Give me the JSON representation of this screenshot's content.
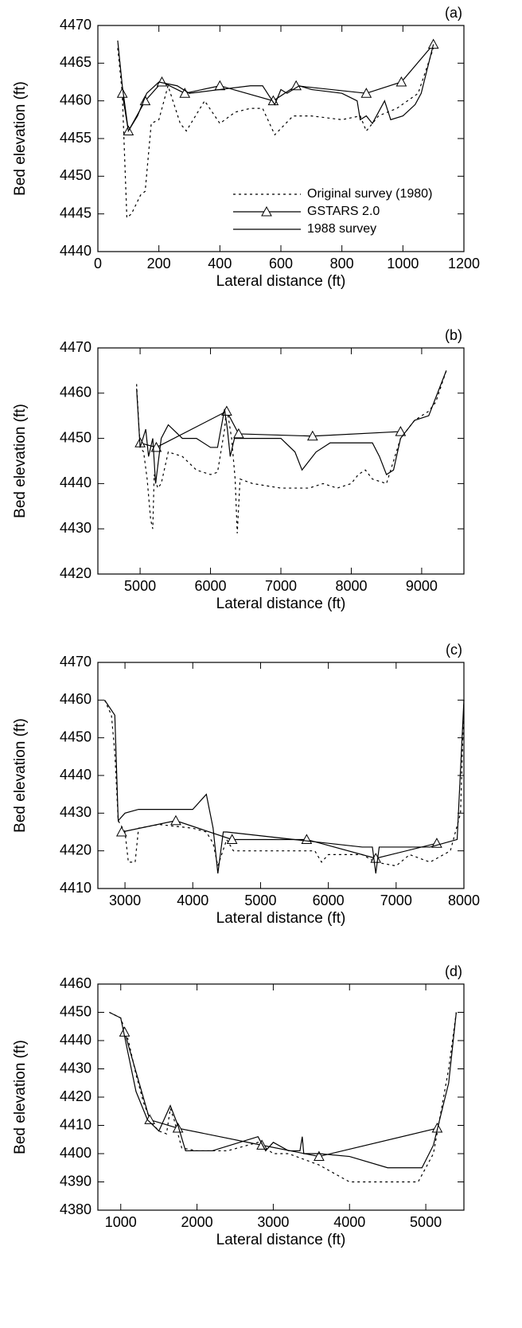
{
  "chart_data": [
    {
      "type": "line",
      "title": "(a)",
      "xlabel": "Lateral distance (ft)",
      "ylabel": "Bed elevation (ft)",
      "xlim": [
        0,
        1200
      ],
      "ylim": [
        4440,
        4470
      ],
      "xticks": [
        0,
        200,
        400,
        600,
        800,
        1000,
        1200
      ],
      "yticks": [
        4440,
        4445,
        4450,
        4455,
        4460,
        4465,
        4470
      ],
      "legend": "lower right",
      "series": [
        {
          "name": "Original survey (1980)",
          "color": "#000000",
          "style": "dotted",
          "x": [
            65,
            80,
            95,
            110,
            140,
            155,
            175,
            200,
            230,
            270,
            290,
            350,
            400,
            450,
            500,
            540,
            580,
            640,
            700,
            800,
            860,
            880,
            920,
            980,
            1050,
            1100
          ],
          "values": [
            4467,
            4461,
            4444.5,
            4445,
            4447.5,
            4448,
            4457,
            4457.5,
            4462,
            4457,
            4456,
            4460,
            4457,
            4458.5,
            4459,
            4459,
            4455.5,
            4458,
            4458,
            4457.5,
            4458,
            4456,
            4458,
            4459,
            4461,
            4467
          ]
        },
        {
          "name": "GSTARS 2.0",
          "color": "#000000",
          "style": "solid",
          "marker": "triangle",
          "x": [
            80,
            100,
            155,
            210,
            285,
            400,
            575,
            650,
            880,
            995,
            1100
          ],
          "values": [
            4461,
            4456,
            4460,
            4462.5,
            4461,
            4462,
            4460,
            4462,
            4461,
            4462.5,
            4467.5
          ]
        },
        {
          "name": "1988 survey",
          "color": "#000000",
          "style": "solid",
          "x": [
            65,
            80,
            100,
            130,
            160,
            200,
            260,
            300,
            400,
            500,
            540,
            580,
            600,
            620,
            660,
            700,
            800,
            850,
            860,
            880,
            900,
            940,
            960,
            1000,
            1040,
            1060,
            1100
          ],
          "values": [
            4468,
            4462,
            4456,
            4458,
            4461,
            4462.5,
            4462,
            4461,
            4461.5,
            4462,
            4462,
            4459.5,
            4461.5,
            4461,
            4462,
            4461.5,
            4461,
            4460,
            4457.5,
            4458,
            4457,
            4460,
            4457.5,
            4458,
            4459.5,
            4461,
            4467.5
          ]
        }
      ]
    },
    {
      "type": "line",
      "title": "(b)",
      "xlabel": "Lateral distance (ft)",
      "ylabel": "Bed elevation (ft)",
      "xlim": [
        4400,
        9600
      ],
      "ylim": [
        4420,
        4470
      ],
      "xticks": [
        5000,
        6000,
        7000,
        8000,
        9000
      ],
      "yticks": [
        4420,
        4430,
        4440,
        4450,
        4460,
        4470
      ],
      "series": [
        {
          "color": "#000000",
          "style": "dotted",
          "x": [
            4950,
            5000,
            5050,
            5100,
            5150,
            5180,
            5200,
            5250,
            5300,
            5400,
            5600,
            5800,
            6000,
            6100,
            6200,
            6230,
            6270,
            6300,
            6350,
            6380,
            6420,
            6600,
            7000,
            7400,
            7600,
            7800,
            8000,
            8100,
            8200,
            8300,
            8500,
            8700,
            8900,
            9100,
            9200,
            9350
          ],
          "values": [
            4462,
            4448,
            4447,
            4441,
            4432,
            4430,
            4442,
            4439,
            4440,
            4447,
            4446,
            4443,
            4442,
            4442.5,
            4452,
            4457,
            4453,
            4450,
            4441,
            4429,
            4441,
            4440,
            4439,
            4439,
            4440,
            4439,
            4440,
            4442,
            4443,
            4441,
            4440,
            4450,
            4454,
            4456,
            4458,
            4465
          ]
        },
        {
          "color": "#000000",
          "style": "solid",
          "marker": "triangle",
          "x": [
            5000,
            5230,
            6230,
            6400,
            7450,
            8700
          ],
          "values": [
            4449,
            4448,
            4456,
            4451,
            4450.5,
            4451.5
          ]
        },
        {
          "color": "#000000",
          "style": "solid",
          "x": [
            4950,
            5000,
            5080,
            5120,
            5180,
            5220,
            5300,
            5400,
            5600,
            5800,
            6000,
            6100,
            6200,
            6240,
            6280,
            6340,
            6400,
            6800,
            7000,
            7200,
            7300,
            7400,
            7500,
            7700,
            8000,
            8300,
            8400,
            8500,
            8600,
            8700,
            8900,
            9100,
            9200,
            9350
          ],
          "values": [
            4461,
            4448,
            4452,
            4446,
            4450,
            4440,
            4450,
            4453,
            4450,
            4450,
            4448,
            4448,
            4456.5,
            4452,
            4446,
            4450,
            4450,
            4450,
            4450,
            4447,
            4443,
            4445,
            4447,
            4449,
            4449,
            4449,
            4446,
            4442,
            4443,
            4450,
            4454,
            4455,
            4459,
            4465
          ]
        }
      ]
    },
    {
      "type": "line",
      "title": "(c)",
      "xlabel": "Lateral distance (ft)",
      "ylabel": "Bed elevation (ft)",
      "xlim": [
        2600,
        8000
      ],
      "ylim": [
        4410,
        4470
      ],
      "xticks": [
        3000,
        4000,
        5000,
        6000,
        7000,
        8000
      ],
      "yticks": [
        4410,
        4420,
        4430,
        4440,
        4450,
        4460,
        4470
      ],
      "series": [
        {
          "color": "#000000",
          "style": "dotted",
          "x": [
            2700,
            2800,
            2850,
            2900,
            3000,
            3050,
            3150,
            3200,
            3500,
            4000,
            4200,
            4300,
            4370,
            4500,
            4600,
            5000,
            5500,
            5800,
            5900,
            6000,
            6500,
            6700,
            7000,
            7200,
            7500,
            7800,
            7950,
            8000
          ],
          "values": [
            4460,
            4456,
            4446,
            4428,
            4425,
            4417,
            4417,
            4426,
            4427,
            4426,
            4425,
            4422,
            4416,
            4423,
            4420,
            4420,
            4420,
            4420,
            4417,
            4419,
            4419,
            4417,
            4416,
            4419,
            4417,
            4420,
            4430,
            4460
          ]
        },
        {
          "color": "#000000",
          "style": "solid",
          "marker": "triangle",
          "x": [
            2950,
            3750,
            4580,
            5680,
            6700,
            7600
          ],
          "values": [
            4425,
            4428,
            4423,
            4423,
            4418,
            4422
          ]
        },
        {
          "color": "#000000",
          "style": "solid",
          "x": [
            2700,
            2850,
            2900,
            3000,
            3200,
            3500,
            4000,
            4200,
            4300,
            4370,
            4450,
            4500,
            5000,
            5500,
            6000,
            6500,
            6650,
            6700,
            6750,
            7000,
            7500,
            7900,
            8000
          ],
          "values": [
            4460,
            4456,
            4428,
            4430,
            4431,
            4431,
            4431,
            4435,
            4426,
            4414,
            4425,
            4425,
            4424,
            4423,
            4422,
            4421,
            4421,
            4414,
            4421,
            4421,
            4421,
            4423,
            4460
          ]
        }
      ]
    },
    {
      "type": "line",
      "title": "(d)",
      "xlabel": "Lateral distance (ft)",
      "ylabel": "Bed elevation (ft)",
      "xlim": [
        700,
        5500
      ],
      "ylim": [
        4380,
        4460
      ],
      "xticks": [
        1000,
        2000,
        3000,
        4000,
        5000
      ],
      "yticks": [
        4380,
        4390,
        4400,
        4410,
        4420,
        4430,
        4440,
        4450,
        4460
      ],
      "series": [
        {
          "color": "#000000",
          "style": "dotted",
          "x": [
            850,
            1000,
            1100,
            1200,
            1300,
            1400,
            1500,
            1600,
            1650,
            1700,
            1800,
            2000,
            2400,
            2800,
            3000,
            3200,
            3400,
            3600,
            4000,
            4500,
            4900,
            5100,
            5300,
            5400
          ],
          "values": [
            4450,
            4448,
            4440,
            4428,
            4418,
            4411,
            4408,
            4407,
            4416,
            4412,
            4402,
            4401,
            4401,
            4404,
            4400,
            4400,
            4398,
            4396,
            4390,
            4390,
            4390,
            4400,
            4430,
            4450
          ]
        },
        {
          "color": "#000000",
          "style": "solid",
          "marker": "triangle",
          "x": [
            1050,
            1380,
            1750,
            2850,
            3600,
            5150
          ],
          "values": [
            4443,
            4412,
            4409,
            4403,
            4399,
            4409
          ]
        },
        {
          "color": "#000000",
          "style": "solid",
          "x": [
            850,
            1000,
            1100,
            1200,
            1350,
            1500,
            1650,
            1750,
            1850,
            2200,
            2800,
            2900,
            3000,
            3200,
            3350,
            3380,
            3400,
            3600,
            4000,
            4500,
            4950,
            5100,
            5300,
            5400
          ],
          "values": [
            4450,
            4448,
            4435,
            4422,
            4412,
            4408,
            4417,
            4410,
            4401,
            4401,
            4406,
            4401,
            4404,
            4401,
            4401,
            4406,
            4400,
            4400,
            4399,
            4395,
            4395,
            4403,
            4425,
            4450
          ]
        }
      ]
    }
  ]
}
